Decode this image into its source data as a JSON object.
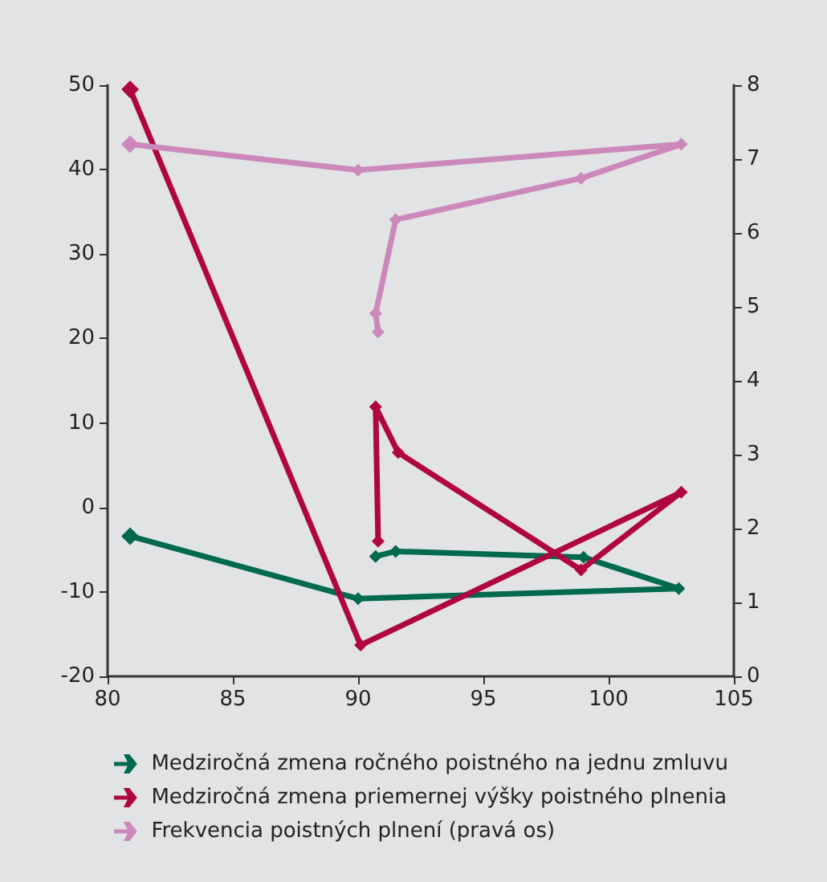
{
  "chart_data": {
    "type": "line",
    "xlim": [
      80,
      105
    ],
    "xticks": [
      80,
      85,
      90,
      95,
      100,
      105
    ],
    "ylim": [
      -20,
      50
    ],
    "yticks": [
      -20,
      -10,
      0,
      10,
      20,
      30,
      40,
      50
    ],
    "y2lim": [
      0,
      8
    ],
    "y2ticks": [
      0,
      1,
      2,
      3,
      4,
      5,
      6,
      7,
      8
    ],
    "grid": false,
    "legend": "bottom",
    "marker": "diamond",
    "line_style": "solid",
    "series": [
      {
        "name": "Medziročná zmena ročného poistného na jednu zmluvu",
        "color": "#006a4e",
        "x": [
          80.9,
          90.0,
          102.8,
          99.0,
          91.5,
          90.7
        ],
        "values": [
          -3.4,
          -10.8,
          -9.6,
          -5.9,
          -5.2,
          -5.8
        ]
      },
      {
        "name": "Medziročná zmena priemernej výšky poistného plnenia",
        "color": "#b0063f",
        "x": [
          80.9,
          90.1,
          102.9,
          98.9,
          91.6,
          90.7,
          90.8
        ],
        "values": [
          49.5,
          -16.3,
          1.8,
          -7.4,
          6.5,
          11.9,
          -4.0
        ]
      },
      {
        "name": "Frekvencia poistných plnení (pravá os)",
        "color": "#cc88bb",
        "axis": "y2",
        "x": [
          80.9,
          90.0,
          102.9,
          98.9,
          91.5,
          90.7,
          90.8
        ],
        "values": [
          7.2,
          6.85,
          7.2,
          6.74,
          6.18,
          4.91,
          4.66
        ]
      }
    ]
  }
}
